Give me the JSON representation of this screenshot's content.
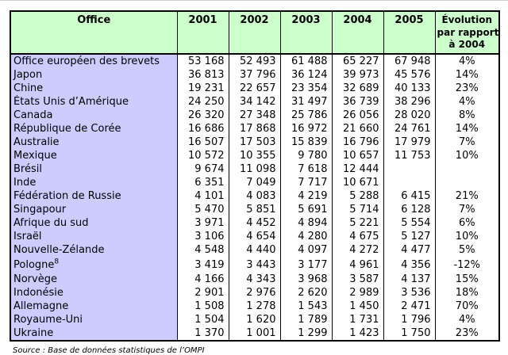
{
  "colors": {
    "header_bg": "#ccffcc",
    "office_column_bg": "#ccccff",
    "border": "#000000",
    "text": "#000000"
  },
  "table": {
    "header": {
      "office_label": "Office",
      "year_labels": [
        "2001",
        "2002",
        "2003",
        "2004",
        "2005"
      ],
      "evolution_label_lines": [
        "Évolution",
        "par rapport",
        "à 2004"
      ],
      "evolution_label_full": "Évolution par rapport à 2004"
    },
    "rows": [
      {
        "office": "Office européen des brevets",
        "sup": "",
        "values": [
          "53 168",
          "52 493",
          "61 488",
          "65 227",
          "67 948"
        ],
        "evolution": "4%"
      },
      {
        "office": "Japon",
        "sup": "",
        "values": [
          "36 813",
          "37 796",
          "36 124",
          "39 973",
          "45 576"
        ],
        "evolution": "14%"
      },
      {
        "office": "Chine",
        "sup": "",
        "values": [
          "19 231",
          "22 657",
          "23 354",
          "32 689",
          "40 133"
        ],
        "evolution": "23%"
      },
      {
        "office": "États Unis d’Amérique",
        "sup": "",
        "values": [
          "24 250",
          "34 142",
          "31 497",
          "36 739",
          "38 296"
        ],
        "evolution": "4%"
      },
      {
        "office": "Canada",
        "sup": "",
        "values": [
          "26 320",
          "27 348",
          "25 786",
          "26 056",
          "28 020"
        ],
        "evolution": "8%"
      },
      {
        "office": "République de Corée",
        "sup": "",
        "values": [
          "16 686",
          "17 868",
          "16 972",
          "21 660",
          "24 761"
        ],
        "evolution": "14%"
      },
      {
        "office": "Australie",
        "sup": "",
        "values": [
          "16 507",
          "17 503",
          "15 839",
          "16 796",
          "17 979"
        ],
        "evolution": "7%"
      },
      {
        "office": "Mexique",
        "sup": "",
        "values": [
          "10 572",
          "10 355",
          "9 780",
          "10 657",
          "11 753"
        ],
        "evolution": "10%"
      },
      {
        "office": "Brésil",
        "sup": "",
        "values": [
          "9 674",
          "11 098",
          "7 618",
          "12 444",
          ""
        ],
        "evolution": ""
      },
      {
        "office": "Inde",
        "sup": "",
        "values": [
          "6 351",
          "7 049",
          "7 717",
          "10 671",
          ""
        ],
        "evolution": ""
      },
      {
        "office": "Fédération de Russie",
        "sup": "",
        "values": [
          "4 101",
          "4 083",
          "4 219",
          "5 288",
          "6 415"
        ],
        "evolution": "21%"
      },
      {
        "office": "Singapour",
        "sup": "",
        "values": [
          "5 470",
          "5 851",
          "5 691",
          "5 714",
          "6 128"
        ],
        "evolution": "7%"
      },
      {
        "office": "Afrique du sud",
        "sup": "",
        "values": [
          "3 971",
          "4 452",
          "4 894",
          "5 221",
          "5 554"
        ],
        "evolution": "6%"
      },
      {
        "office": "Israël",
        "sup": "",
        "values": [
          "3 106",
          "4 654",
          "4 280",
          "4 675",
          "5 127"
        ],
        "evolution": "10%"
      },
      {
        "office": "Nouvelle-Zélande",
        "sup": "",
        "values": [
          "4 548",
          "4 440",
          "4 097",
          "4 272",
          "4 477"
        ],
        "evolution": "5%"
      },
      {
        "office": "Pologne",
        "sup": "8",
        "values": [
          "3 419",
          "3 443",
          "3 177",
          "4 961",
          "4 356"
        ],
        "evolution": "-12%"
      },
      {
        "office": "Norvège",
        "sup": "",
        "values": [
          "4 166",
          "4 343",
          "3 968",
          "3 587",
          "4 137"
        ],
        "evolution": "15%"
      },
      {
        "office": "Indonésie",
        "sup": "",
        "values": [
          "2 901",
          "2 976",
          "2 620",
          "2 989",
          "3 536"
        ],
        "evolution": "18%"
      },
      {
        "office": "Allemagne",
        "sup": "",
        "values": [
          "1 508",
          "1 278",
          "1 543",
          "1 450",
          "2 471"
        ],
        "evolution": "70%"
      },
      {
        "office": "Royaume-Uni",
        "sup": "",
        "values": [
          "1 504",
          "1 620",
          "1 789",
          "1 731",
          "1 796"
        ],
        "evolution": "4%"
      },
      {
        "office": "Ukraine",
        "sup": "",
        "values": [
          "1 370",
          "1 001",
          "1 299",
          "1 423",
          "1 750"
        ],
        "evolution": "23%"
      }
    ]
  },
  "footer": {
    "source": "Source : Base de données statistiques de l’OMPI"
  }
}
